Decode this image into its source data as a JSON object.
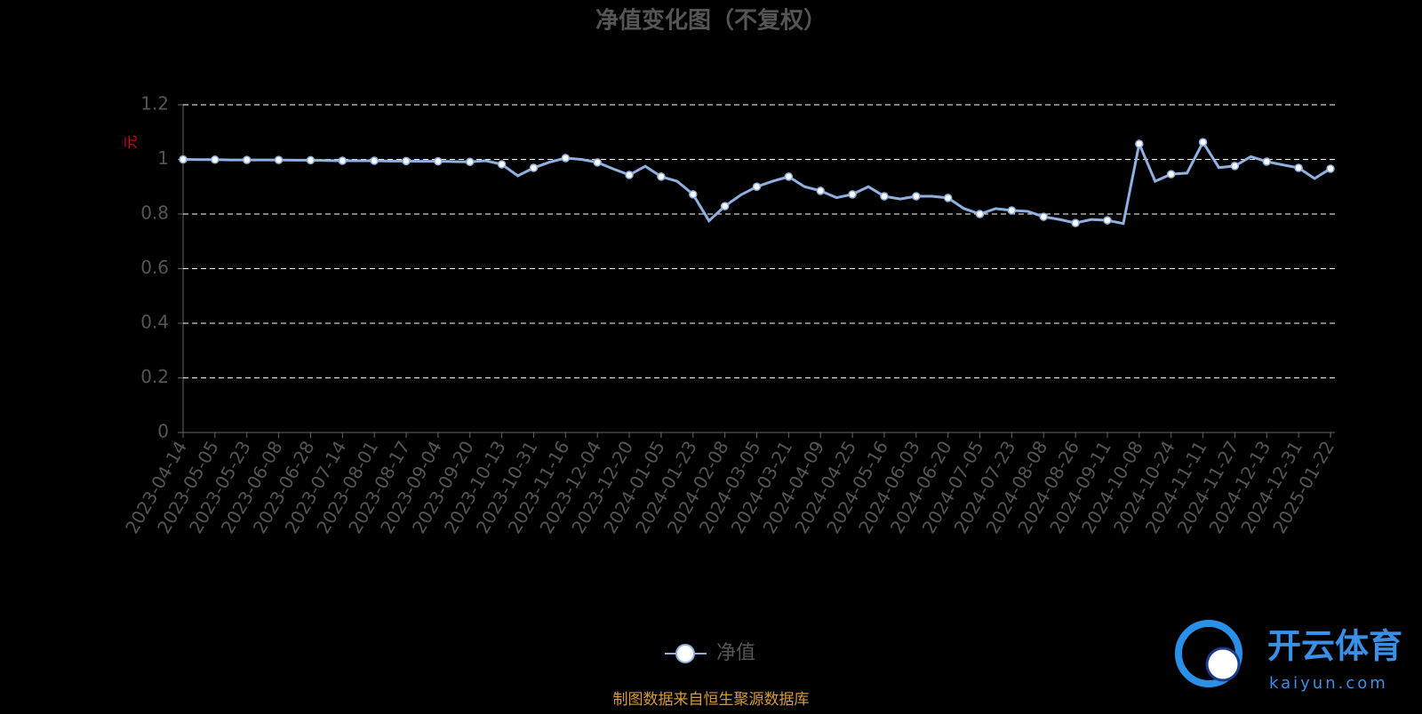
{
  "chart_data": {
    "type": "line",
    "title": "净值变化图（不复权）",
    "ylabel": "元",
    "categories": [
      "2023-04-14",
      null,
      "2023-05-05",
      null,
      "2023-05-23",
      null,
      "2023-06-08",
      null,
      "2023-06-28",
      null,
      "2023-07-14",
      null,
      "2023-08-01",
      null,
      "2023-08-17",
      null,
      "2023-09-04",
      null,
      "2023-09-20",
      null,
      "2023-10-13",
      null,
      "2023-10-31",
      null,
      "2023-11-16",
      null,
      "2023-12-04",
      null,
      "2023-12-20",
      null,
      "2024-01-05",
      null,
      "2024-01-23",
      null,
      "2024-02-08",
      null,
      "2024-03-05",
      null,
      "2024-03-21",
      null,
      "2024-04-09",
      null,
      "2024-04-25",
      null,
      "2024-05-16",
      null,
      "2024-06-03",
      null,
      "2024-06-20",
      null,
      "2024-07-05",
      null,
      "2024-07-23",
      null,
      "2024-08-08",
      null,
      "2024-08-26",
      null,
      "2024-09-11",
      null,
      "2024-10-08",
      null,
      "2024-10-24",
      null,
      "2024-11-11",
      null,
      "2024-11-27",
      null,
      "2024-12-13",
      null,
      "2024-12-31",
      null,
      "2025-01-22"
    ],
    "series": [
      {
        "name": "净值",
        "color": "#8fb0e0",
        "values": [
          1.0,
          0.999,
          0.999,
          0.998,
          0.998,
          0.998,
          0.998,
          0.997,
          0.997,
          0.996,
          0.995,
          0.995,
          0.995,
          0.994,
          0.994,
          0.993,
          0.993,
          0.992,
          0.991,
          0.995,
          0.982,
          0.94,
          0.969,
          0.99,
          1.005,
          1.0,
          0.989,
          0.965,
          0.943,
          0.975,
          0.937,
          0.92,
          0.872,
          0.775,
          0.829,
          0.87,
          0.9,
          0.92,
          0.937,
          0.9,
          0.885,
          0.86,
          0.872,
          0.9,
          0.865,
          0.855,
          0.865,
          0.865,
          0.859,
          0.82,
          0.8,
          0.82,
          0.813,
          0.81,
          0.79,
          0.78,
          0.767,
          0.78,
          0.777,
          0.765,
          1.057,
          0.92,
          0.946,
          0.95,
          1.063,
          0.97,
          0.976,
          1.01,
          0.992,
          0.98,
          0.969,
          0.93,
          0.966
        ]
      }
    ],
    "ylim": [
      0,
      1.2
    ],
    "yticks": [
      0,
      0.2,
      0.4,
      0.6,
      0.8,
      1,
      1.2
    ],
    "grid": true,
    "source": "制图数据来自恒生聚源数据库"
  },
  "watermark": {
    "brand": "开云体育",
    "site": "kaiyun.com"
  }
}
